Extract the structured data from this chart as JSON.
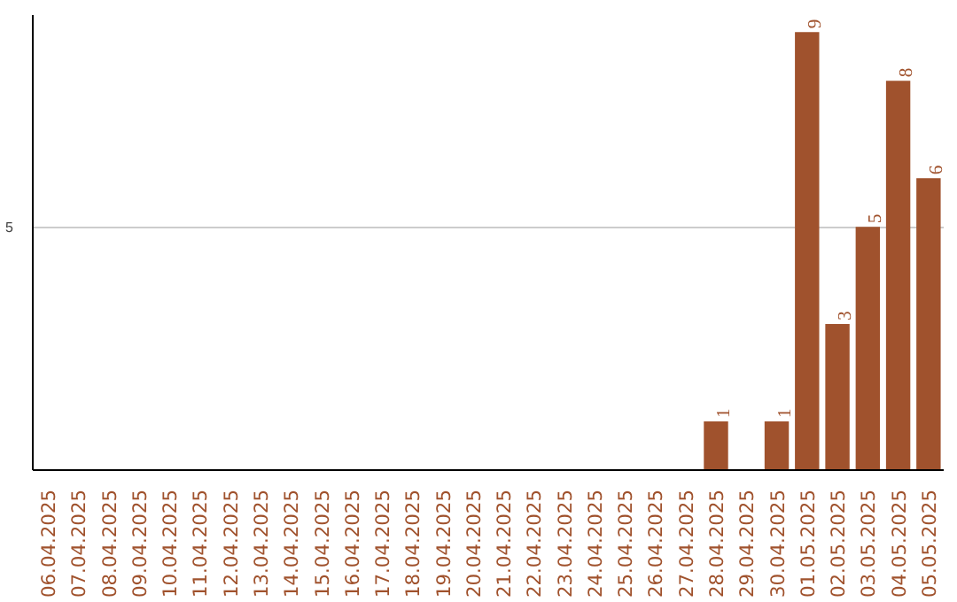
{
  "chart_data": {
    "type": "bar",
    "categories": [
      "06.04.2025",
      "07.04.2025",
      "08.04.2025",
      "09.04.2025",
      "10.04.2025",
      "11.04.2025",
      "12.04.2025",
      "13.04.2025",
      "14.04.2025",
      "15.04.2025",
      "16.04.2025",
      "17.04.2025",
      "18.04.2025",
      "19.04.2025",
      "20.04.2025",
      "21.04.2025",
      "22.04.2025",
      "23.04.2025",
      "24.04.2025",
      "25.04.2025",
      "26.04.2025",
      "27.04.2025",
      "28.04.2025",
      "29.04.2025",
      "30.04.2025",
      "01.05.2025",
      "02.05.2025",
      "03.05.2025",
      "04.05.2025",
      "05.05.2025"
    ],
    "values": [
      null,
      null,
      null,
      null,
      null,
      null,
      null,
      null,
      null,
      null,
      null,
      null,
      null,
      null,
      null,
      null,
      null,
      null,
      null,
      null,
      null,
      null,
      1,
      null,
      1,
      9,
      3,
      5,
      8,
      6
    ],
    "color": "#a0522d",
    "ylim": [
      0,
      9.35
    ],
    "yticks": [
      5
    ],
    "grid": "y",
    "data_labels": true
  }
}
